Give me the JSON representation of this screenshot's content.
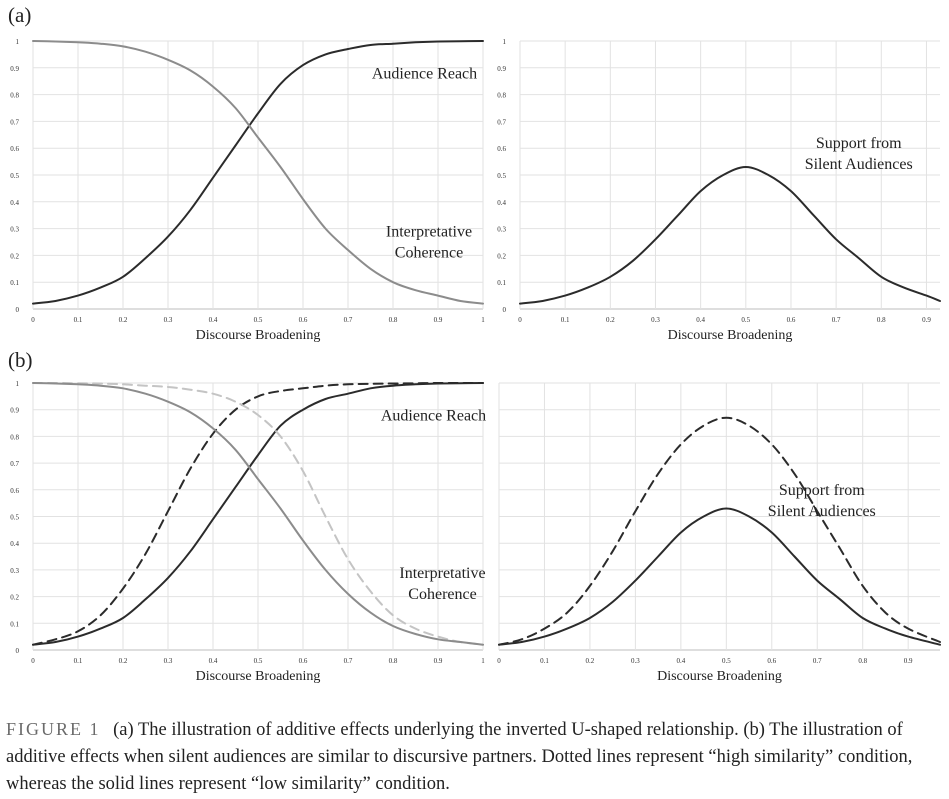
{
  "panels": [
    {
      "id": "a",
      "label": "(a)"
    },
    {
      "id": "b",
      "label": "(b)"
    }
  ],
  "chart_data": [
    {
      "panel": "(a)",
      "type": "line",
      "xlabel": "Discourse Broadening",
      "xlim": [
        0,
        1
      ],
      "ylim": [
        0,
        1
      ],
      "xticks": [
        "0",
        "0.1",
        "0.2",
        "0.3",
        "0.4",
        "0.5",
        "0.6",
        "0.7",
        "0.8",
        "0.9",
        "1"
      ],
      "yticks": [
        "0",
        "0.1",
        "0.2",
        "0.3",
        "0.4",
        "0.5",
        "0.6",
        "0.7",
        "0.8",
        "0.9",
        "1"
      ],
      "grid": true,
      "x": [
        0,
        0.05,
        0.1,
        0.15,
        0.2,
        0.25,
        0.3,
        0.35,
        0.4,
        0.45,
        0.5,
        0.55,
        0.6,
        0.65,
        0.7,
        0.75,
        0.8,
        0.85,
        0.9,
        0.95,
        1
      ],
      "series": [
        {
          "curve": "audience_reach",
          "style": "solid",
          "color": "#2b2b2b",
          "values": [
            0.02,
            0.03,
            0.05,
            0.08,
            0.12,
            0.19,
            0.27,
            0.37,
            0.49,
            0.61,
            0.73,
            0.84,
            0.91,
            0.95,
            0.97,
            0.985,
            0.99,
            0.995,
            0.998,
            0.999,
            1.0
          ]
        },
        {
          "curve": "interpretative_coherence",
          "style": "solid",
          "color": "#8c8c8c",
          "values": [
            1.0,
            0.998,
            0.995,
            0.99,
            0.98,
            0.96,
            0.93,
            0.89,
            0.83,
            0.75,
            0.64,
            0.53,
            0.41,
            0.3,
            0.22,
            0.15,
            0.1,
            0.07,
            0.05,
            0.03,
            0.02
          ]
        }
      ],
      "annotations": [
        {
          "lines": [
            "Audience Reach"
          ],
          "x": 0.87,
          "y": 0.86
        },
        {
          "lines": [
            "Interpretative",
            "Coherence"
          ],
          "x": 0.88,
          "y": 0.27
        }
      ]
    },
    {
      "panel": "(a)",
      "type": "line",
      "xlabel": "Discourse Broadening",
      "xlim": [
        0,
        0.93
      ],
      "ylim": [
        0,
        1
      ],
      "xticks": [
        "0",
        "0.1",
        "0.2",
        "0.3",
        "0.4",
        "0.5",
        "0.6",
        "0.7",
        "0.8",
        "0.9"
      ],
      "yticks": [
        "0",
        "0.1",
        "0.2",
        "0.3",
        "0.4",
        "0.5",
        "0.6",
        "0.7",
        "0.8",
        "0.9",
        "1"
      ],
      "grid": true,
      "x": [
        0,
        0.05,
        0.1,
        0.15,
        0.2,
        0.25,
        0.3,
        0.35,
        0.4,
        0.45,
        0.5,
        0.55,
        0.6,
        0.65,
        0.7,
        0.75,
        0.8,
        0.85,
        0.9,
        0.93
      ],
      "series": [
        {
          "curve": "support",
          "style": "solid",
          "color": "#2b2b2b",
          "values": [
            0.02,
            0.03,
            0.05,
            0.08,
            0.12,
            0.18,
            0.26,
            0.35,
            0.44,
            0.5,
            0.53,
            0.5,
            0.44,
            0.35,
            0.26,
            0.19,
            0.12,
            0.08,
            0.05,
            0.03
          ]
        }
      ],
      "annotations": [
        {
          "lines": [
            "Support from",
            "Silent Audiences"
          ],
          "x": 0.75,
          "y": 0.6
        }
      ]
    },
    {
      "panel": "(b)",
      "type": "line",
      "xlabel": "Discourse Broadening",
      "xlim": [
        0,
        1
      ],
      "ylim": [
        0,
        1
      ],
      "xticks": [
        "0",
        "0.1",
        "0.2",
        "0.3",
        "0.4",
        "0.5",
        "0.6",
        "0.7",
        "0.8",
        "0.9",
        "1"
      ],
      "yticks": [
        "0",
        "0.1",
        "0.2",
        "0.3",
        "0.4",
        "0.5",
        "0.6",
        "0.7",
        "0.8",
        "0.9",
        "1"
      ],
      "grid": true,
      "x": [
        0,
        0.05,
        0.1,
        0.15,
        0.2,
        0.25,
        0.3,
        0.35,
        0.4,
        0.45,
        0.5,
        0.55,
        0.6,
        0.65,
        0.7,
        0.75,
        0.8,
        0.85,
        0.9,
        0.95,
        1
      ],
      "series": [
        {
          "curve": "audience_reach_high",
          "style": "dashed",
          "color": "#2b2b2b",
          "values": [
            0.02,
            0.04,
            0.07,
            0.13,
            0.23,
            0.36,
            0.52,
            0.68,
            0.81,
            0.9,
            0.95,
            0.97,
            0.98,
            0.99,
            0.995,
            0.997,
            0.998,
            0.999,
            1.0,
            1.0,
            1.0
          ]
        },
        {
          "curve": "audience_reach_low",
          "style": "solid",
          "color": "#2b2b2b",
          "values": [
            0.02,
            0.03,
            0.05,
            0.08,
            0.12,
            0.19,
            0.27,
            0.37,
            0.49,
            0.61,
            0.73,
            0.84,
            0.9,
            0.94,
            0.96,
            0.98,
            0.99,
            0.995,
            0.998,
            0.999,
            1.0
          ]
        },
        {
          "curve": "coherence_high",
          "style": "dashed",
          "color": "#c4c4c4",
          "values": [
            1.0,
            1.0,
            0.999,
            0.998,
            0.995,
            0.99,
            0.985,
            0.975,
            0.96,
            0.93,
            0.88,
            0.8,
            0.67,
            0.5,
            0.34,
            0.22,
            0.13,
            0.08,
            0.05,
            0.03,
            0.02
          ]
        },
        {
          "curve": "coherence_low",
          "style": "solid",
          "color": "#8c8c8c",
          "values": [
            1.0,
            0.998,
            0.995,
            0.99,
            0.98,
            0.96,
            0.93,
            0.89,
            0.83,
            0.75,
            0.64,
            0.53,
            0.41,
            0.3,
            0.21,
            0.14,
            0.09,
            0.06,
            0.04,
            0.03,
            0.02
          ]
        }
      ],
      "annotations": [
        {
          "lines": [
            "Audience Reach"
          ],
          "x": 0.89,
          "y": 0.86
        },
        {
          "lines": [
            "Interpretative",
            "Coherence"
          ],
          "x": 0.91,
          "y": 0.27
        }
      ]
    },
    {
      "panel": "(b)",
      "type": "line",
      "xlabel": "Discourse Broadening",
      "xlim": [
        0,
        0.97
      ],
      "ylim": [
        0,
        1
      ],
      "xticks": [
        "0",
        "0.1",
        "0.2",
        "0.3",
        "0.4",
        "0.5",
        "0.6",
        "0.7",
        "0.8",
        "0.9"
      ],
      "yticks": [],
      "grid": true,
      "x": [
        0,
        0.05,
        0.1,
        0.15,
        0.2,
        0.25,
        0.3,
        0.35,
        0.4,
        0.45,
        0.5,
        0.55,
        0.6,
        0.65,
        0.7,
        0.75,
        0.8,
        0.85,
        0.9,
        0.97
      ],
      "series": [
        {
          "curve": "support_high",
          "style": "dashed",
          "color": "#2b2b2b",
          "values": [
            0.02,
            0.04,
            0.08,
            0.14,
            0.24,
            0.37,
            0.52,
            0.66,
            0.77,
            0.84,
            0.87,
            0.84,
            0.77,
            0.66,
            0.52,
            0.38,
            0.24,
            0.14,
            0.08,
            0.03
          ]
        },
        {
          "curve": "support_low",
          "style": "solid",
          "color": "#2b2b2b",
          "values": [
            0.02,
            0.03,
            0.05,
            0.08,
            0.12,
            0.18,
            0.26,
            0.35,
            0.44,
            0.5,
            0.53,
            0.5,
            0.44,
            0.35,
            0.26,
            0.19,
            0.12,
            0.08,
            0.05,
            0.02
          ]
        }
      ],
      "annotations": [
        {
          "lines": [
            "Support from",
            "Silent Audiences"
          ],
          "x": 0.71,
          "y": 0.58
        }
      ]
    }
  ],
  "caption": {
    "label": "FIGURE 1",
    "text": "(a) The illustration of additive effects underlying the inverted U-shaped relationship. (b) The illustration of additive effects when silent audiences are similar to discursive partners. Dotted lines represent “high similarity” condition, whereas the solid lines represent “low similarity” condition."
  }
}
